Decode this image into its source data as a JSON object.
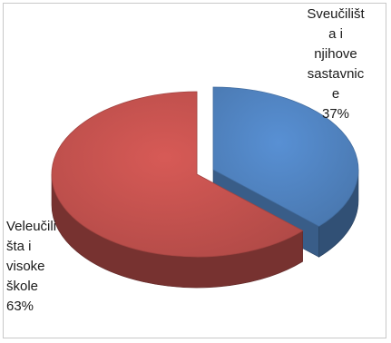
{
  "chart_data": {
    "type": "pie",
    "style": "3d-exploded",
    "slices": [
      {
        "label_lines": [
          "Sveučilišt",
          "a i",
          "njihove",
          "sastavnic",
          "e",
          "37%"
        ],
        "value": 37,
        "color": "#4f81bd"
      },
      {
        "label_lines": [
          "Veleučili",
          "šta i",
          "visoke",
          "škole",
          "63%"
        ],
        "value": 63,
        "color": "#c0504d"
      }
    ],
    "legend": "none"
  }
}
